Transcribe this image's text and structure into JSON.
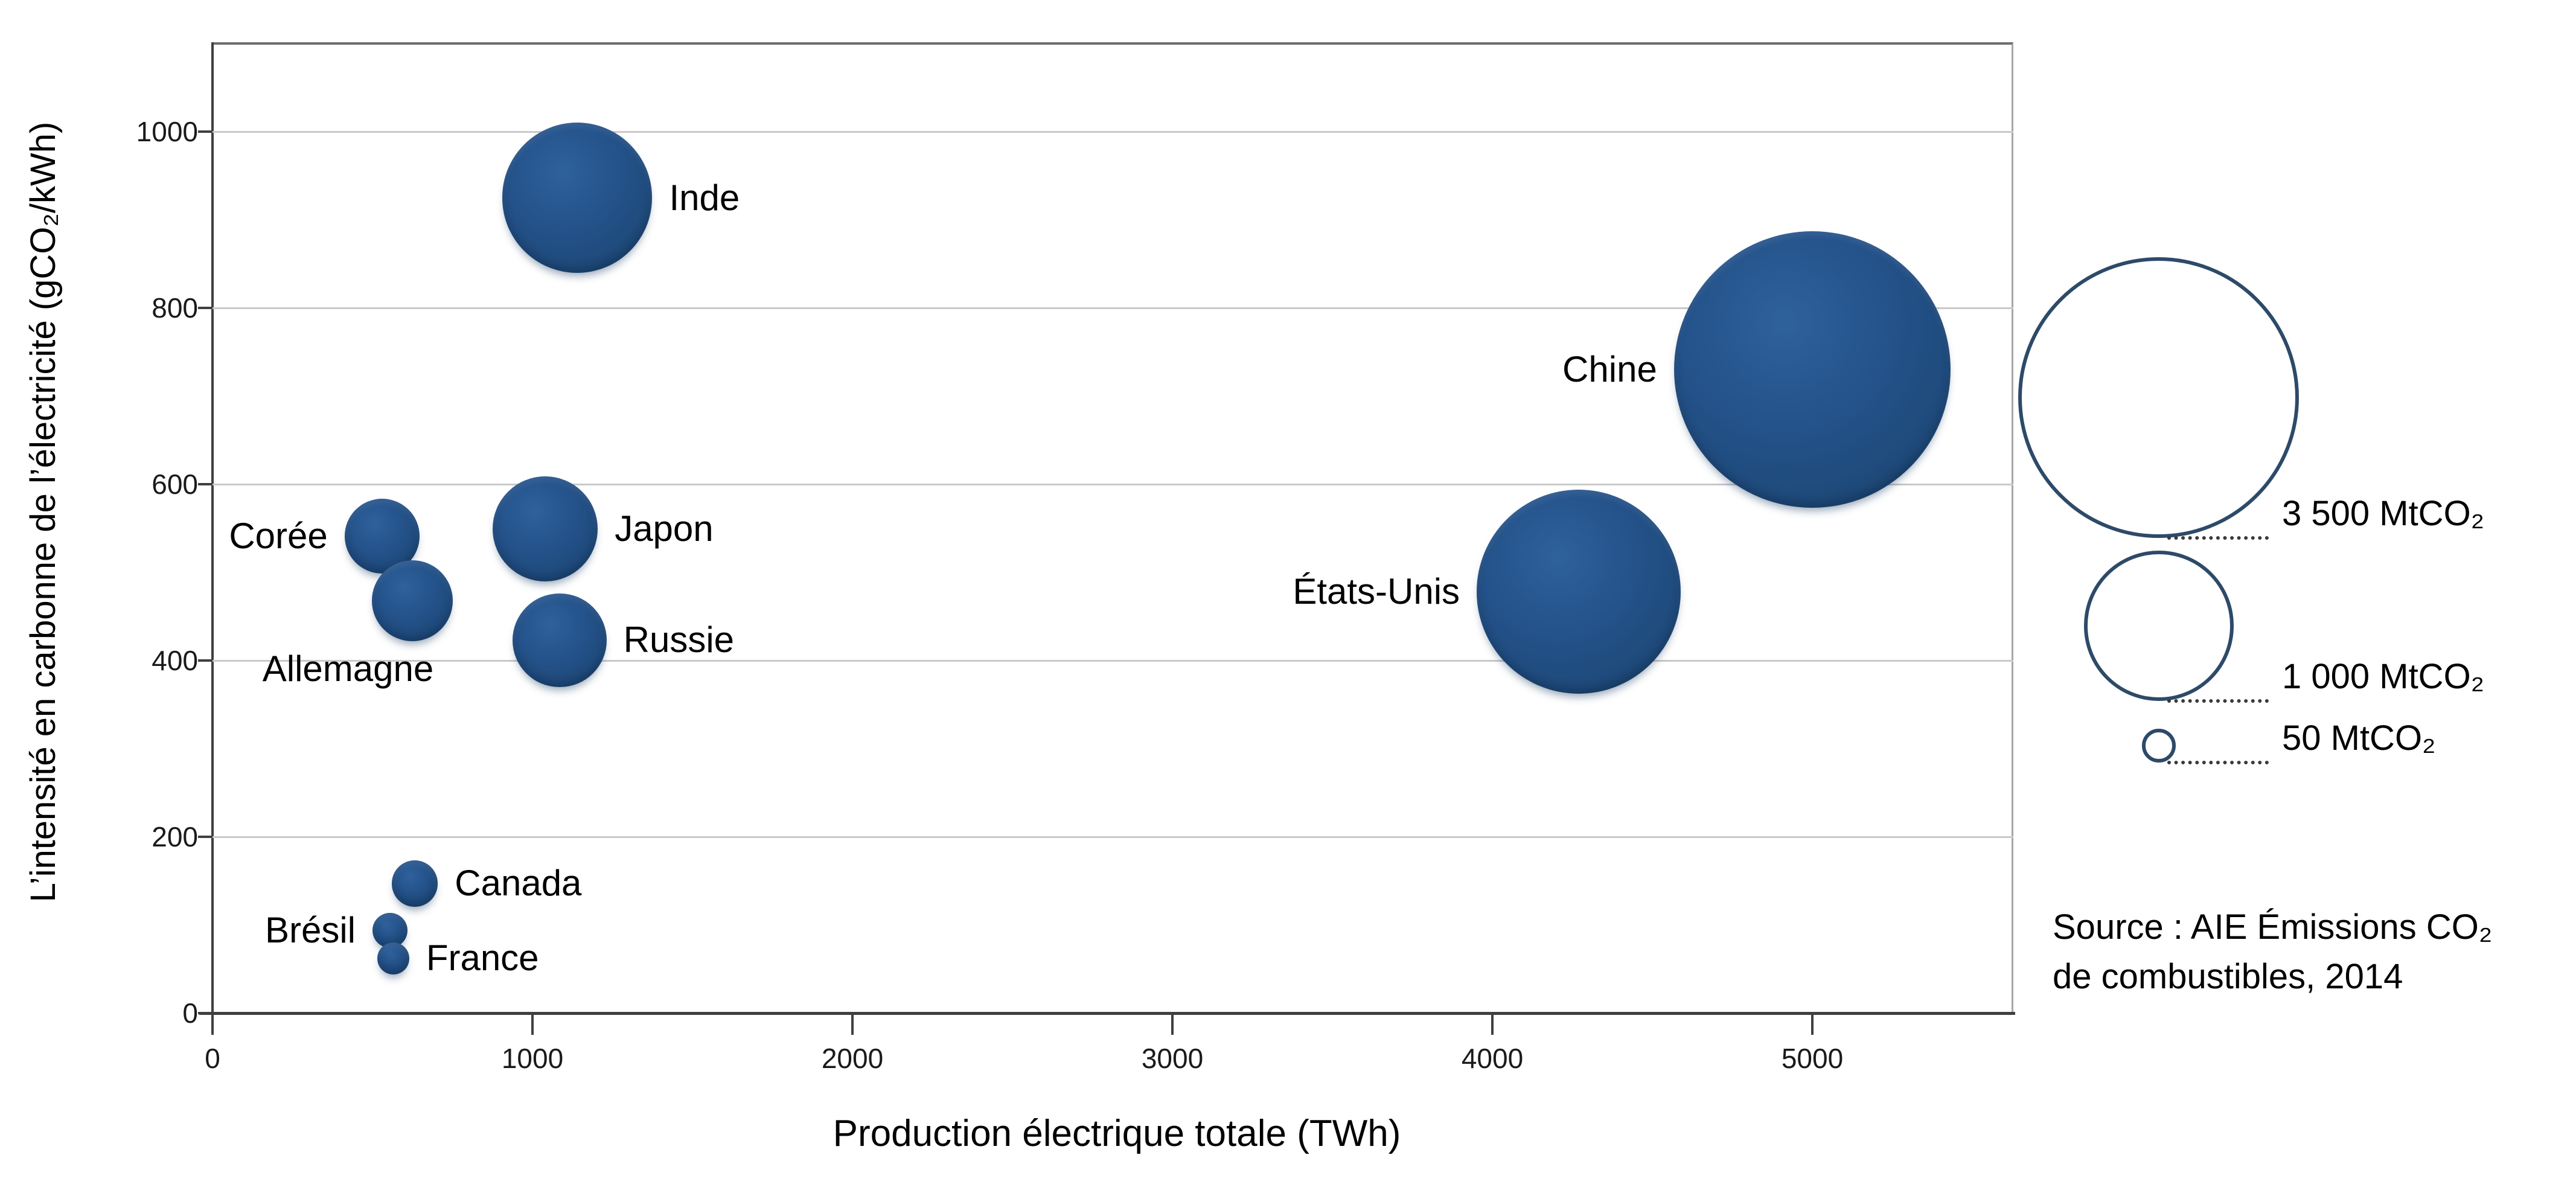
{
  "chart_data": {
    "type": "scatter",
    "subtype": "bubble",
    "title": "",
    "xlabel": "Production électrique totale (TWh)",
    "ylabel": "L’intensité en carbonne de l’électricité (gCO₂/kWh)",
    "xlim": [
      0,
      5600
    ],
    "ylim": [
      0,
      1100
    ],
    "x_ticks": [
      0,
      1000,
      2000,
      3000,
      4000,
      5000
    ],
    "y_ticks": [
      0,
      200,
      400,
      600,
      800,
      1000
    ],
    "grid": "horizontal",
    "size_encoding": "bubble area proportional to CO2 emissions (MtCO2)",
    "points": [
      {
        "label": "Inde",
        "x": 1140,
        "y": 925,
        "emissions_mtco2": 1000,
        "label_side": "right"
      },
      {
        "label": "Chine",
        "x": 5000,
        "y": 730,
        "emissions_mtco2": 3400,
        "label_side": "left"
      },
      {
        "label": "États-Unis",
        "x": 4270,
        "y": 478,
        "emissions_mtco2": 1850,
        "label_side": "left"
      },
      {
        "label": "Japon",
        "x": 1040,
        "y": 549,
        "emissions_mtco2": 490,
        "label_side": "right"
      },
      {
        "label": "Russie",
        "x": 1085,
        "y": 423,
        "emissions_mtco2": 390,
        "label_side": "right"
      },
      {
        "label": "Corée",
        "x": 530,
        "y": 541,
        "emissions_mtco2": 250,
        "label_side": "left"
      },
      {
        "label": "Allemagne",
        "x": 625,
        "y": 468,
        "emissions_mtco2": 290,
        "label_side": "below-left"
      },
      {
        "label": "Canada",
        "x": 632,
        "y": 147,
        "emissions_mtco2": 95,
        "label_side": "right"
      },
      {
        "label": "Brésil",
        "x": 555,
        "y": 94,
        "emissions_mtco2": 55,
        "label_side": "left"
      },
      {
        "label": "France",
        "x": 565,
        "y": 62,
        "emissions_mtco2": 45,
        "label_side": "right"
      }
    ],
    "legend": {
      "position": "right",
      "items": [
        {
          "label": "3 500 MtCO₂",
          "value": 3500
        },
        {
          "label": "1 000 MtCO₂",
          "value": 1000
        },
        {
          "label": "50 MtCO₂",
          "value": 50
        }
      ]
    },
    "source_lines": [
      "Source : AIE Émissions CO₂",
      "de combustibles, 2014"
    ]
  },
  "colors": {
    "bubble_fill": "#1f4e79",
    "bubble_highlight": "#2f619b",
    "bubble_edge": "#183c62",
    "legend_stroke": "#2d4a68",
    "gridline": "#c9c9c9",
    "axis": "#3f3f3f",
    "plot_border": "#a6a6a6",
    "text": "#000000"
  }
}
